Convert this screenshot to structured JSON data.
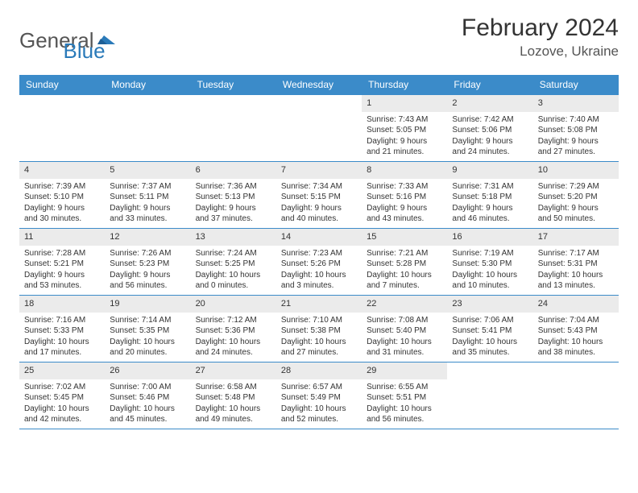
{
  "logo": {
    "text_general": "General",
    "text_blue": "Blue"
  },
  "title": "February 2024",
  "location": "Lozove, Ukraine",
  "colors": {
    "header_bg": "#3b8bc9",
    "header_text": "#ffffff",
    "daynum_bg": "#ebebeb",
    "border": "#3b8bc9",
    "text": "#333333",
    "logo_gray": "#555555",
    "logo_blue": "#2a7ab9"
  },
  "day_names": [
    "Sunday",
    "Monday",
    "Tuesday",
    "Wednesday",
    "Thursday",
    "Friday",
    "Saturday"
  ],
  "weeks": [
    [
      {
        "day": "",
        "sunrise": "",
        "sunset": "",
        "daylight": ""
      },
      {
        "day": "",
        "sunrise": "",
        "sunset": "",
        "daylight": ""
      },
      {
        "day": "",
        "sunrise": "",
        "sunset": "",
        "daylight": ""
      },
      {
        "day": "",
        "sunrise": "",
        "sunset": "",
        "daylight": ""
      },
      {
        "day": "1",
        "sunrise": "Sunrise: 7:43 AM",
        "sunset": "Sunset: 5:05 PM",
        "daylight": "Daylight: 9 hours and 21 minutes."
      },
      {
        "day": "2",
        "sunrise": "Sunrise: 7:42 AM",
        "sunset": "Sunset: 5:06 PM",
        "daylight": "Daylight: 9 hours and 24 minutes."
      },
      {
        "day": "3",
        "sunrise": "Sunrise: 7:40 AM",
        "sunset": "Sunset: 5:08 PM",
        "daylight": "Daylight: 9 hours and 27 minutes."
      }
    ],
    [
      {
        "day": "4",
        "sunrise": "Sunrise: 7:39 AM",
        "sunset": "Sunset: 5:10 PM",
        "daylight": "Daylight: 9 hours and 30 minutes."
      },
      {
        "day": "5",
        "sunrise": "Sunrise: 7:37 AM",
        "sunset": "Sunset: 5:11 PM",
        "daylight": "Daylight: 9 hours and 33 minutes."
      },
      {
        "day": "6",
        "sunrise": "Sunrise: 7:36 AM",
        "sunset": "Sunset: 5:13 PM",
        "daylight": "Daylight: 9 hours and 37 minutes."
      },
      {
        "day": "7",
        "sunrise": "Sunrise: 7:34 AM",
        "sunset": "Sunset: 5:15 PM",
        "daylight": "Daylight: 9 hours and 40 minutes."
      },
      {
        "day": "8",
        "sunrise": "Sunrise: 7:33 AM",
        "sunset": "Sunset: 5:16 PM",
        "daylight": "Daylight: 9 hours and 43 minutes."
      },
      {
        "day": "9",
        "sunrise": "Sunrise: 7:31 AM",
        "sunset": "Sunset: 5:18 PM",
        "daylight": "Daylight: 9 hours and 46 minutes."
      },
      {
        "day": "10",
        "sunrise": "Sunrise: 7:29 AM",
        "sunset": "Sunset: 5:20 PM",
        "daylight": "Daylight: 9 hours and 50 minutes."
      }
    ],
    [
      {
        "day": "11",
        "sunrise": "Sunrise: 7:28 AM",
        "sunset": "Sunset: 5:21 PM",
        "daylight": "Daylight: 9 hours and 53 minutes."
      },
      {
        "day": "12",
        "sunrise": "Sunrise: 7:26 AM",
        "sunset": "Sunset: 5:23 PM",
        "daylight": "Daylight: 9 hours and 56 minutes."
      },
      {
        "day": "13",
        "sunrise": "Sunrise: 7:24 AM",
        "sunset": "Sunset: 5:25 PM",
        "daylight": "Daylight: 10 hours and 0 minutes."
      },
      {
        "day": "14",
        "sunrise": "Sunrise: 7:23 AM",
        "sunset": "Sunset: 5:26 PM",
        "daylight": "Daylight: 10 hours and 3 minutes."
      },
      {
        "day": "15",
        "sunrise": "Sunrise: 7:21 AM",
        "sunset": "Sunset: 5:28 PM",
        "daylight": "Daylight: 10 hours and 7 minutes."
      },
      {
        "day": "16",
        "sunrise": "Sunrise: 7:19 AM",
        "sunset": "Sunset: 5:30 PM",
        "daylight": "Daylight: 10 hours and 10 minutes."
      },
      {
        "day": "17",
        "sunrise": "Sunrise: 7:17 AM",
        "sunset": "Sunset: 5:31 PM",
        "daylight": "Daylight: 10 hours and 13 minutes."
      }
    ],
    [
      {
        "day": "18",
        "sunrise": "Sunrise: 7:16 AM",
        "sunset": "Sunset: 5:33 PM",
        "daylight": "Daylight: 10 hours and 17 minutes."
      },
      {
        "day": "19",
        "sunrise": "Sunrise: 7:14 AM",
        "sunset": "Sunset: 5:35 PM",
        "daylight": "Daylight: 10 hours and 20 minutes."
      },
      {
        "day": "20",
        "sunrise": "Sunrise: 7:12 AM",
        "sunset": "Sunset: 5:36 PM",
        "daylight": "Daylight: 10 hours and 24 minutes."
      },
      {
        "day": "21",
        "sunrise": "Sunrise: 7:10 AM",
        "sunset": "Sunset: 5:38 PM",
        "daylight": "Daylight: 10 hours and 27 minutes."
      },
      {
        "day": "22",
        "sunrise": "Sunrise: 7:08 AM",
        "sunset": "Sunset: 5:40 PM",
        "daylight": "Daylight: 10 hours and 31 minutes."
      },
      {
        "day": "23",
        "sunrise": "Sunrise: 7:06 AM",
        "sunset": "Sunset: 5:41 PM",
        "daylight": "Daylight: 10 hours and 35 minutes."
      },
      {
        "day": "24",
        "sunrise": "Sunrise: 7:04 AM",
        "sunset": "Sunset: 5:43 PM",
        "daylight": "Daylight: 10 hours and 38 minutes."
      }
    ],
    [
      {
        "day": "25",
        "sunrise": "Sunrise: 7:02 AM",
        "sunset": "Sunset: 5:45 PM",
        "daylight": "Daylight: 10 hours and 42 minutes."
      },
      {
        "day": "26",
        "sunrise": "Sunrise: 7:00 AM",
        "sunset": "Sunset: 5:46 PM",
        "daylight": "Daylight: 10 hours and 45 minutes."
      },
      {
        "day": "27",
        "sunrise": "Sunrise: 6:58 AM",
        "sunset": "Sunset: 5:48 PM",
        "daylight": "Daylight: 10 hours and 49 minutes."
      },
      {
        "day": "28",
        "sunrise": "Sunrise: 6:57 AM",
        "sunset": "Sunset: 5:49 PM",
        "daylight": "Daylight: 10 hours and 52 minutes."
      },
      {
        "day": "29",
        "sunrise": "Sunrise: 6:55 AM",
        "sunset": "Sunset: 5:51 PM",
        "daylight": "Daylight: 10 hours and 56 minutes."
      },
      {
        "day": "",
        "sunrise": "",
        "sunset": "",
        "daylight": ""
      },
      {
        "day": "",
        "sunrise": "",
        "sunset": "",
        "daylight": ""
      }
    ]
  ]
}
